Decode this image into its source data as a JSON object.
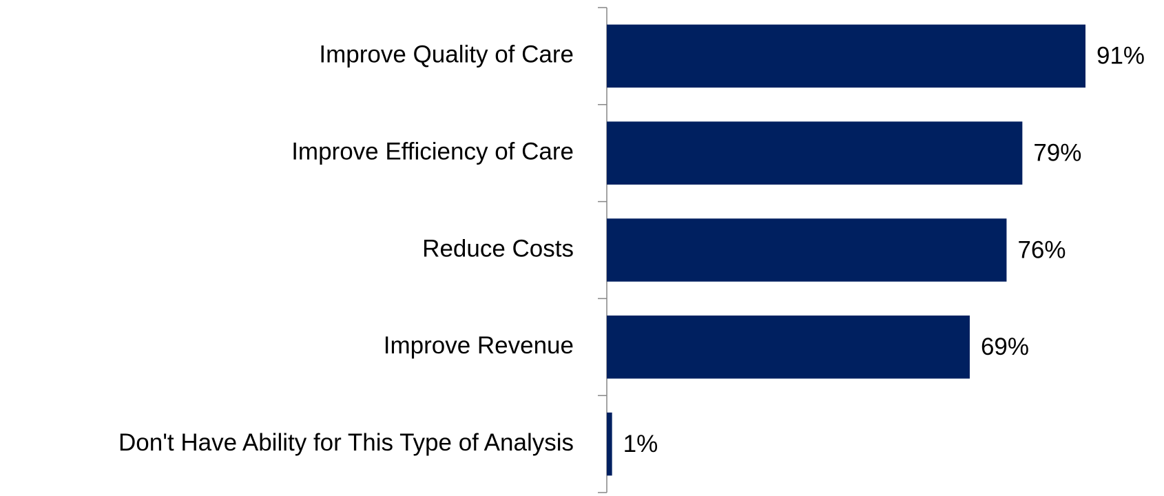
{
  "chart_data": {
    "type": "bar",
    "orientation": "horizontal",
    "categories": [
      "Improve Quality of Care",
      "Improve Efficiency of Care",
      "Reduce Costs",
      "Improve Revenue",
      "Don't Have Ability for This Type of Analysis"
    ],
    "values": [
      91,
      79,
      76,
      69,
      1
    ],
    "value_labels": [
      "91%",
      "79%",
      "76%",
      "69%",
      "1%"
    ],
    "color": "#002060"
  }
}
